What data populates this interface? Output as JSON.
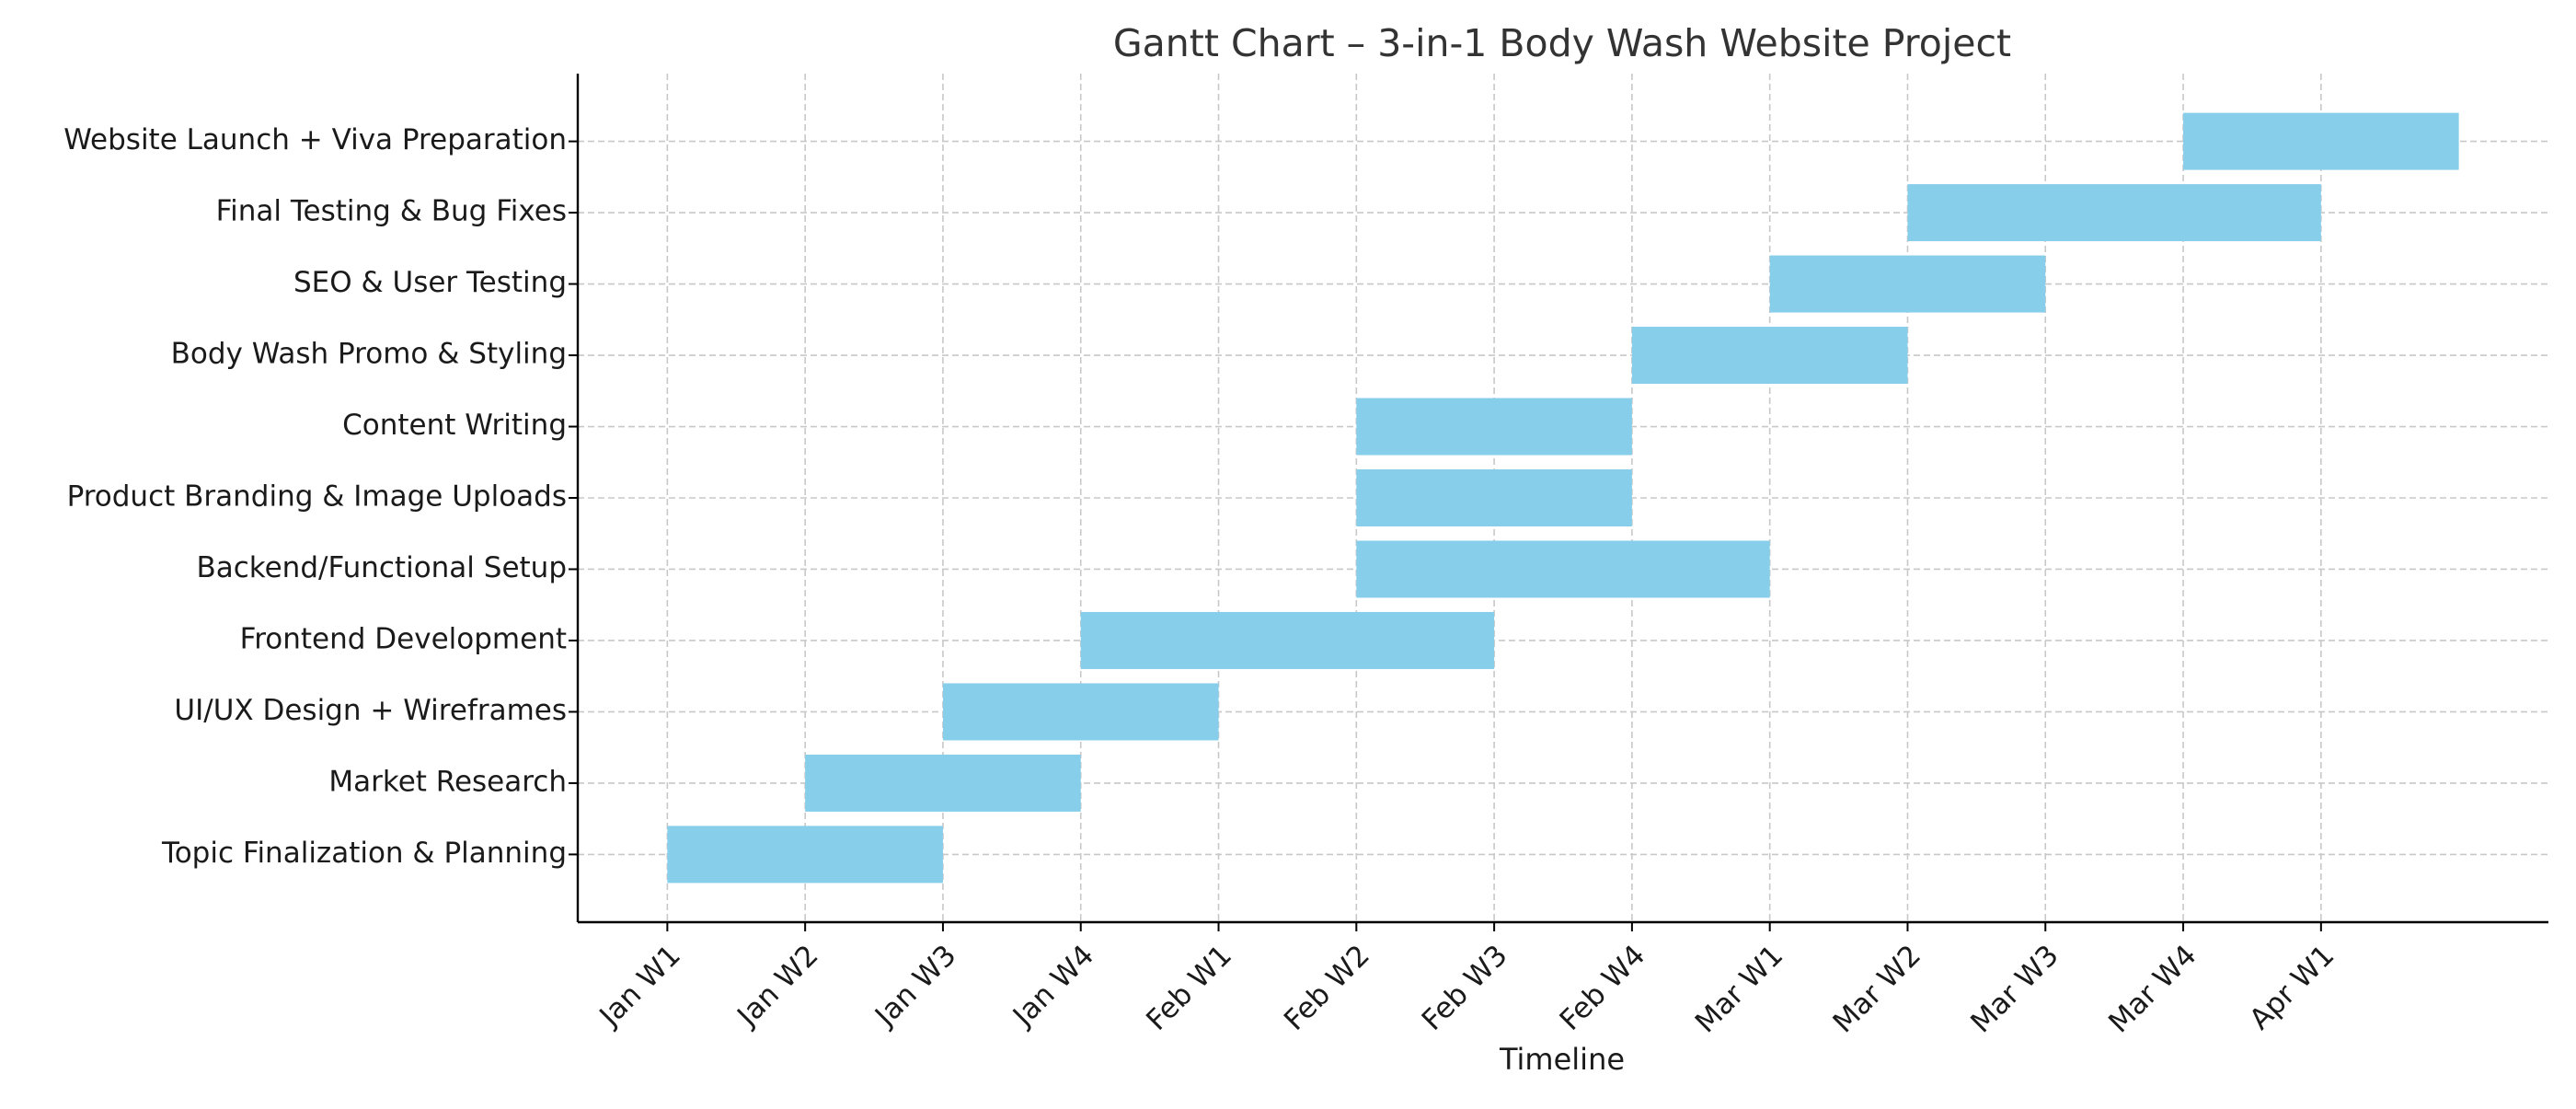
{
  "chart_data": {
    "type": "gantt",
    "title": "Gantt Chart – 3-in-1 Body Wash Website Project",
    "xlabel": "Timeline",
    "ylabel": "",
    "x_ticks": [
      "Jan W1",
      "Jan W2",
      "Jan W3",
      "Jan W4",
      "Feb W1",
      "Feb W2",
      "Feb W3",
      "Feb W4",
      "Mar W1",
      "Mar W2",
      "Mar W3",
      "Mar W4",
      "Apr W1"
    ],
    "xlim_weeks": [
      -0.65,
      13.65
    ],
    "grid": true,
    "bar_color": "#87ceeb",
    "tasks": [
      {
        "name": "Topic Finalization & Planning",
        "start": "Jan W1",
        "duration_weeks": 2
      },
      {
        "name": "Market Research",
        "start": "Jan W2",
        "duration_weeks": 2
      },
      {
        "name": "UI/UX Design + Wireframes",
        "start": "Jan W3",
        "duration_weeks": 2
      },
      {
        "name": "Frontend Development",
        "start": "Jan W4",
        "duration_weeks": 3
      },
      {
        "name": "Backend/Functional Setup",
        "start": "Feb W2",
        "duration_weeks": 3
      },
      {
        "name": "Product Branding & Image Uploads",
        "start": "Feb W2",
        "duration_weeks": 2
      },
      {
        "name": "Content Writing",
        "start": "Feb W2",
        "duration_weeks": 2
      },
      {
        "name": "Body Wash Promo & Styling",
        "start": "Feb W4",
        "duration_weeks": 2
      },
      {
        "name": "SEO & User Testing",
        "start": "Mar W1",
        "duration_weeks": 2
      },
      {
        "name": "Final Testing & Bug Fixes",
        "start": "Mar W2",
        "duration_weeks": 3
      },
      {
        "name": "Website Launch + Viva Preparation",
        "start": "Mar W4",
        "duration_weeks": 2
      }
    ]
  }
}
